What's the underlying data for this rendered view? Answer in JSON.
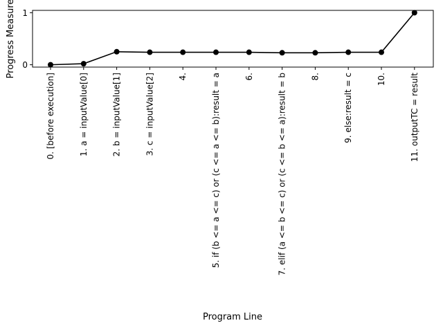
{
  "chart_data": {
    "type": "line",
    "title": "",
    "xlabel": "Program Line",
    "ylabel": "Progress Measure",
    "categories": [
      "0. [before execution]",
      "1. a = inputValue[0]",
      "2. b = inputValue[1]",
      "3. c = inputValue[2]",
      "4.",
      "5. if (b <= a <= c) or (c <= a <= b):result = a",
      "6.",
      "7. elif (a <= b <= c) or (c <= b <= a):result = b",
      "8.",
      "9. else:result = c",
      "10.",
      "11. outputTC = result"
    ],
    "series": [
      {
        "values": [
          0.0,
          0.02,
          0.25,
          0.24,
          0.24,
          0.24,
          0.24,
          0.23,
          0.23,
          0.24,
          0.24,
          1.0
        ],
        "color": "#000000",
        "marker": "circle"
      }
    ],
    "y_ticks": [
      "0",
      "1"
    ],
    "ylim": [
      -0.045,
      1.045
    ],
    "grid": false,
    "legend": "none"
  }
}
